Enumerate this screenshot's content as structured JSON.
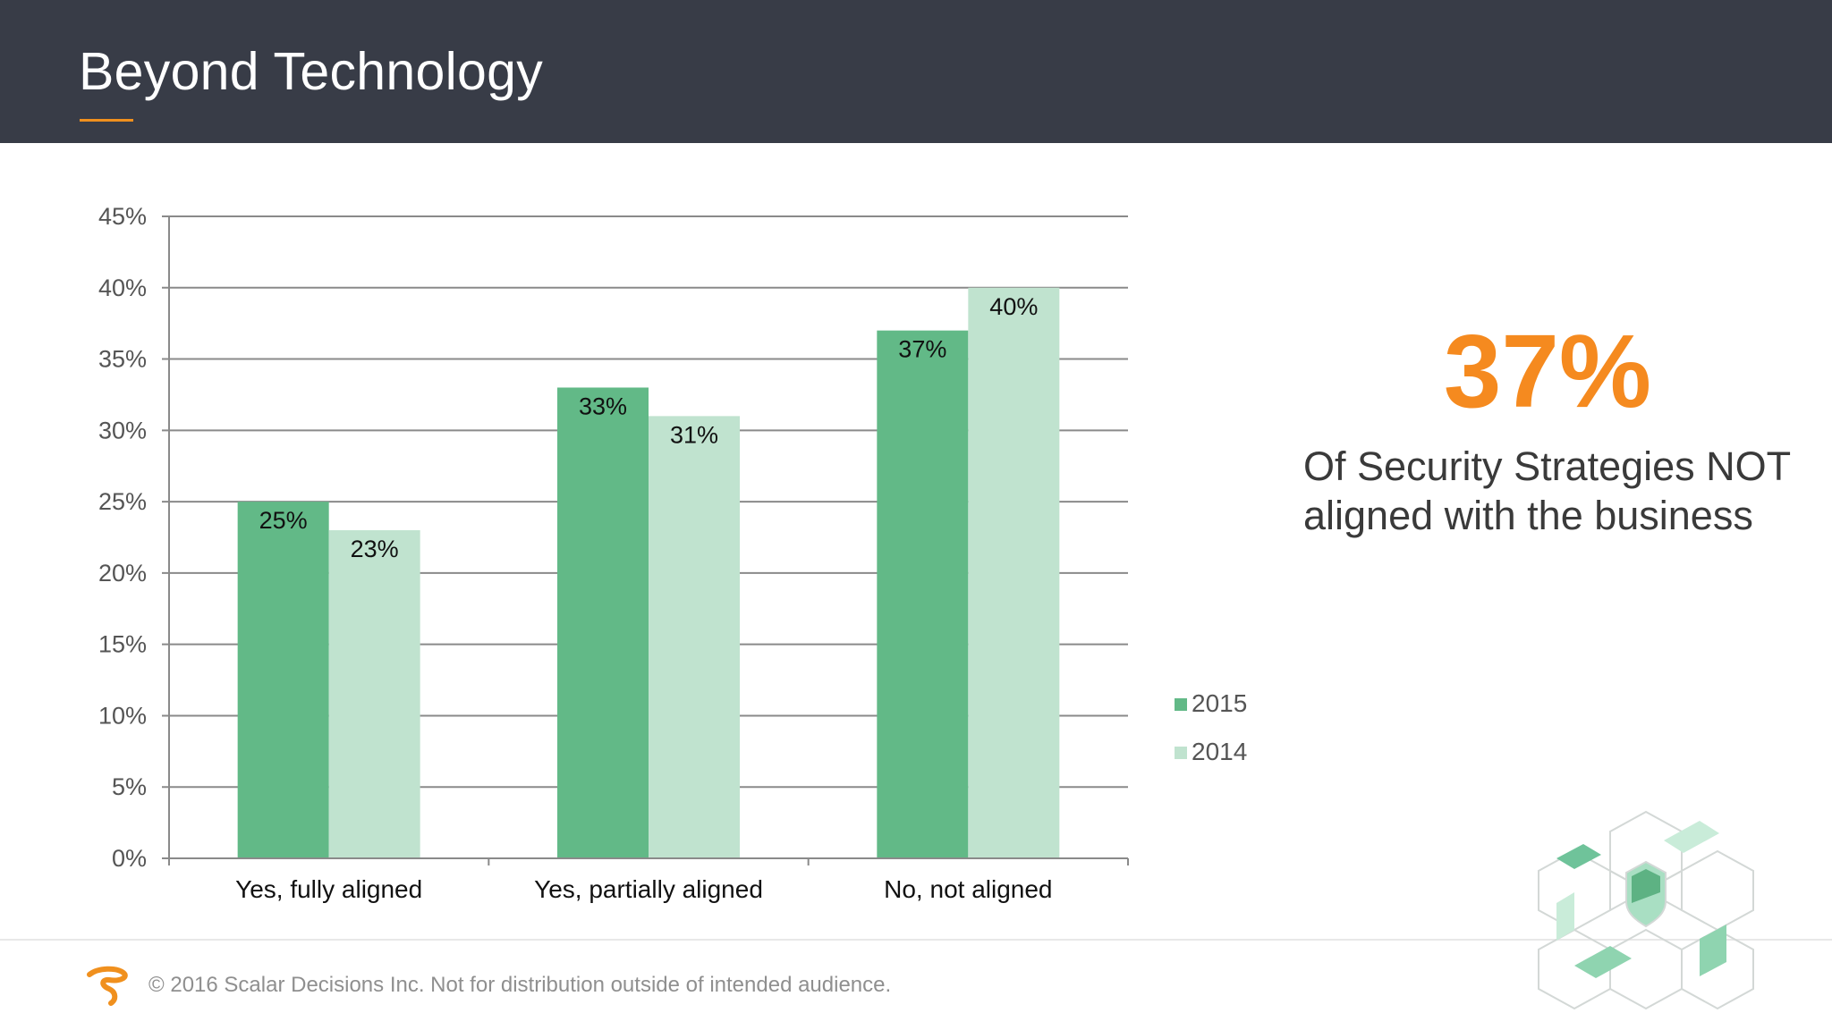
{
  "header": {
    "title": "Beyond Technology"
  },
  "colors": {
    "header_bg": "#383c47",
    "accent": "#f58a1f",
    "series_2015": "#62b987",
    "series_2014": "#c0e3cf"
  },
  "stat": {
    "value": "37%",
    "caption_line1": "Of Security Strategies NOT",
    "caption_line2": "aligned with the business"
  },
  "footer": {
    "text": "© 2016 Scalar Decisions Inc. Not for distribution outside of intended audience."
  },
  "chart_data": {
    "type": "bar",
    "title": "",
    "xlabel": "",
    "ylabel": "",
    "categories": [
      "Yes, fully aligned",
      "Yes, partially aligned",
      "No, not aligned"
    ],
    "series": [
      {
        "name": "2015",
        "values": [
          25,
          33,
          37
        ],
        "labels": [
          "25%",
          "33%",
          "37%"
        ]
      },
      {
        "name": "2014",
        "values": [
          23,
          31,
          40
        ],
        "labels": [
          "23%",
          "31%",
          "40%"
        ]
      }
    ],
    "ylim": [
      0,
      45
    ],
    "yticks": [
      0,
      5,
      10,
      15,
      20,
      25,
      30,
      35,
      40,
      45
    ],
    "ytick_labels": [
      "0%",
      "5%",
      "10%",
      "15%",
      "20%",
      "25%",
      "30%",
      "35%",
      "40%",
      "45%"
    ],
    "grid": true,
    "legend": "right"
  }
}
